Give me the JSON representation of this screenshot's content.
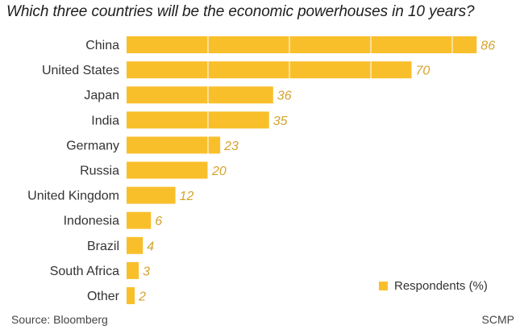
{
  "chart_data": {
    "type": "bar",
    "orientation": "horizontal",
    "title": "Which three countries will be the economic powerhouses in 10 years?",
    "categories": [
      "China",
      "United States",
      "Japan",
      "India",
      "Germany",
      "Russia",
      "United Kingdom",
      "Indonesia",
      "Brazil",
      "South Africa",
      "Other"
    ],
    "series": [
      {
        "name": "Respondents (%)",
        "values": [
          86,
          70,
          36,
          35,
          23,
          20,
          12,
          6,
          4,
          3,
          2
        ]
      }
    ],
    "xlim": [
      0,
      100
    ],
    "data_labels": true,
    "grid": "vertical",
    "legend_position": "bottom-right",
    "colors": {
      "bar": "#f9bf2b",
      "value_label": "#d6a32e",
      "grid": "#ffffff"
    }
  },
  "footer": {
    "source": "Source: Bloomberg",
    "credit": "SCMP"
  }
}
